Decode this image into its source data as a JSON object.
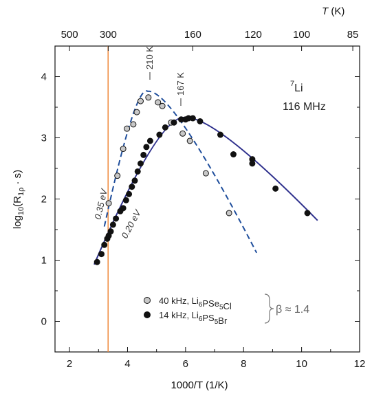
{
  "chart_data": {
    "type": "scatter",
    "xlabel": "1000/T (1/K)",
    "ylabel": "log10(R1ρ · s)",
    "top_axis_label": "T (K)",
    "xlim": [
      1.5,
      12
    ],
    "ylim": [
      -0.5,
      4.5
    ],
    "x_ticks": [
      2,
      4,
      6,
      8,
      10,
      12
    ],
    "y_ticks": [
      0,
      1,
      2,
      3,
      4
    ],
    "top_ticks": [
      {
        "label": "500",
        "T": 500
      },
      {
        "label": "300",
        "T": 300,
        "highlight": true
      },
      {
        "label": "160",
        "T": 160
      },
      {
        "label": "120",
        "T": 120
      },
      {
        "label": "100",
        "T": 100
      },
      {
        "label": "85",
        "T": 85
      }
    ],
    "vertical_line": {
      "x": 3.33,
      "color": "#f0883a"
    },
    "annotations": {
      "nucleus_mass": "7",
      "nucleus_symbol": "Li",
      "frequency": "116 MHz",
      "peak1_label": "210 K",
      "peak2_label": "167 K",
      "slope1_label": "0.35 eV",
      "slope2_label": "0.20 eV",
      "beta": "β ≈ 1.4"
    },
    "series": [
      {
        "name": "40 kHz, Li6PSe5Cl",
        "legend_prefix": "40 kHz, Li",
        "legend_parts": [
          {
            "text": "40 kHz, Li",
            "sub": false
          },
          {
            "text": "6",
            "sub": true
          },
          {
            "text": "PSe",
            "sub": false
          },
          {
            "text": "5",
            "sub": true
          },
          {
            "text": "Cl",
            "sub": false
          }
        ],
        "marker": "open-gray",
        "color": "#1f4e9c",
        "points": [
          [
            3.35,
            1.93
          ],
          [
            3.65,
            2.38
          ],
          [
            3.85,
            2.82
          ],
          [
            3.98,
            3.15
          ],
          [
            4.2,
            3.22
          ],
          [
            4.32,
            3.42
          ],
          [
            4.45,
            3.6
          ],
          [
            4.72,
            3.66
          ],
          [
            5.05,
            3.58
          ],
          [
            5.2,
            3.52
          ],
          [
            5.5,
            3.25
          ],
          [
            5.9,
            3.07
          ],
          [
            6.15,
            2.95
          ],
          [
            6.7,
            2.42
          ],
          [
            7.5,
            1.77
          ]
        ],
        "fit": [
          [
            3.2,
            1.55
          ],
          [
            4.7,
            3.76
          ],
          [
            8.45,
            1.12
          ]
        ]
      },
      {
        "name": "14 kHz, Li6PS5Br",
        "legend_parts": [
          {
            "text": "14 kHz, Li",
            "sub": false
          },
          {
            "text": "6",
            "sub": true
          },
          {
            "text": "PS",
            "sub": false
          },
          {
            "text": "5",
            "sub": true
          },
          {
            "text": "Br",
            "sub": false
          }
        ],
        "marker": "filled-black",
        "color": "#2d2f8c",
        "points": [
          [
            2.95,
            0.97
          ],
          [
            3.1,
            1.1
          ],
          [
            3.2,
            1.25
          ],
          [
            3.3,
            1.35
          ],
          [
            3.35,
            1.4
          ],
          [
            3.42,
            1.47
          ],
          [
            3.5,
            1.58
          ],
          [
            3.6,
            1.68
          ],
          [
            3.75,
            1.8
          ],
          [
            3.85,
            1.85
          ],
          [
            3.95,
            1.98
          ],
          [
            4.05,
            2.08
          ],
          [
            4.15,
            2.2
          ],
          [
            4.25,
            2.3
          ],
          [
            4.35,
            2.45
          ],
          [
            4.45,
            2.58
          ],
          [
            4.55,
            2.72
          ],
          [
            4.65,
            2.85
          ],
          [
            4.78,
            2.95
          ],
          [
            5.1,
            3.05
          ],
          [
            5.3,
            3.17
          ],
          [
            5.6,
            3.25
          ],
          [
            5.85,
            3.3
          ],
          [
            6.0,
            3.3
          ],
          [
            6.1,
            3.32
          ],
          [
            6.25,
            3.32
          ],
          [
            6.5,
            3.27
          ],
          [
            7.2,
            3.05
          ],
          [
            7.65,
            2.73
          ],
          [
            8.3,
            2.65
          ],
          [
            8.3,
            2.58
          ],
          [
            9.1,
            2.17
          ],
          [
            10.2,
            1.77
          ]
        ],
        "fit": [
          [
            2.85,
            0.93
          ],
          [
            6.0,
            3.33
          ],
          [
            10.55,
            1.65
          ]
        ]
      }
    ]
  }
}
